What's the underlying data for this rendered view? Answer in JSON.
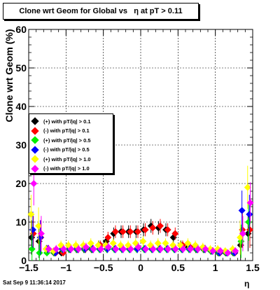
{
  "title": "Clone wrt Geom for Global vs   η at pT > 0.11",
  "timestamp": "Sat Sep  9 11:36:14 2017",
  "chart_data": {
    "type": "scatter",
    "title": "Clone wrt Geom for Global vs   η at pT > 0.11",
    "xlabel": "η",
    "ylabel": "Clone wrt Geom (%)",
    "xlim": [
      -1.5,
      1.5
    ],
    "ylim": [
      0,
      60
    ],
    "x_ticks": [
      "−1.5",
      "−1",
      "−0.5",
      "0",
      "0.5",
      "1",
      "1.5"
    ],
    "y_ticks": [
      "0",
      "10",
      "20",
      "30",
      "40",
      "50",
      "60"
    ],
    "grid": true,
    "legend_position": "left-middle",
    "series": [
      {
        "name": "(+) with pT/|q| > 0.1",
        "color": "#000000",
        "x": [
          -1.45,
          -1.35,
          -1.25,
          -1.15,
          -1.05,
          -0.95,
          -0.85,
          -0.75,
          -0.65,
          -0.55,
          -0.45,
          -0.35,
          -0.25,
          -0.15,
          -0.05,
          0.05,
          0.15,
          0.25,
          0.35,
          0.45,
          0.55,
          0.65,
          0.75,
          0.85,
          0.95,
          1.05,
          1.15,
          1.25,
          1.35,
          1.45
        ],
        "y": [
          6,
          5,
          3,
          2,
          2,
          3,
          3,
          3,
          3,
          4,
          5,
          7,
          7.5,
          7.5,
          7.5,
          8,
          9,
          8.5,
          8,
          6,
          4,
          3.5,
          3,
          3,
          2.5,
          2,
          2,
          2,
          4,
          7
        ]
      },
      {
        "name": "(-) with pT/|q| > 0.1",
        "color": "#ff0000",
        "x": [
          -1.45,
          -1.35,
          -1.25,
          -1.15,
          -1.05,
          -0.95,
          -0.85,
          -0.75,
          -0.65,
          -0.55,
          -0.45,
          -0.35,
          -0.25,
          -0.15,
          -0.05,
          0.05,
          0.15,
          0.25,
          0.35,
          0.45,
          0.55,
          0.65,
          0.75,
          0.85,
          0.95,
          1.05,
          1.15,
          1.25,
          1.35,
          1.45
        ],
        "y": [
          7,
          6,
          3,
          2,
          2,
          3,
          3,
          3,
          3,
          4,
          6,
          7.5,
          7.5,
          7.5,
          7.5,
          8,
          8.5,
          9,
          8,
          7,
          4,
          3.5,
          3,
          3,
          2.5,
          2,
          2,
          2,
          8,
          8
        ]
      },
      {
        "name": "(+) with pT/|q| > 0.5",
        "color": "#00ee00",
        "x": [
          -1.45,
          -1.35,
          -1.25,
          -1.15,
          -1.05,
          -0.95,
          -0.85,
          -0.75,
          -0.65,
          -0.55,
          -0.45,
          -0.35,
          -0.25,
          -0.15,
          -0.05,
          0.05,
          0.15,
          0.25,
          0.35,
          0.45,
          0.55,
          0.65,
          0.75,
          0.85,
          0.95,
          1.05,
          1.15,
          1.25,
          1.35,
          1.45
        ],
        "y": [
          3,
          2,
          2,
          2,
          3,
          3,
          3,
          3,
          3,
          3,
          3,
          3,
          3,
          3,
          3,
          3,
          3,
          3,
          3,
          3,
          3,
          3,
          3,
          3,
          2.5,
          2,
          2,
          2,
          5,
          10
        ]
      },
      {
        "name": "(-) with pT/|q| > 0.5",
        "color": "#0000ff",
        "x": [
          -1.45,
          -1.35,
          -1.25,
          -1.15,
          -1.05,
          -0.95,
          -0.85,
          -0.75,
          -0.65,
          -0.55,
          -0.45,
          -0.35,
          -0.25,
          -0.15,
          -0.05,
          0.05,
          0.15,
          0.25,
          0.35,
          0.45,
          0.55,
          0.65,
          0.75,
          0.85,
          0.95,
          1.05,
          1.15,
          1.25,
          1.35,
          1.45
        ],
        "y": [
          8,
          6,
          3,
          2,
          3,
          3,
          3,
          3,
          3,
          3,
          3,
          3,
          3,
          3,
          3,
          3,
          3,
          3,
          3,
          3,
          3,
          3,
          3,
          3,
          2.5,
          2,
          2,
          2,
          13,
          12
        ]
      },
      {
        "name": "(+) with pT/|q| > 1.0",
        "color": "#ffff00",
        "x": [
          -1.45,
          -1.35,
          -1.25,
          -1.15,
          -1.05,
          -0.95,
          -0.85,
          -0.75,
          -0.65,
          -0.55,
          -0.45,
          -0.35,
          -0.25,
          -0.15,
          -0.05,
          0.05,
          0.15,
          0.25,
          0.35,
          0.45,
          0.55,
          0.65,
          0.75,
          0.85,
          0.95,
          1.05,
          1.15,
          1.25,
          1.35,
          1.45
        ],
        "y": [
          12,
          9,
          3,
          2.5,
          4,
          4,
          4,
          4,
          4.5,
          4,
          4,
          4.5,
          4,
          4,
          4.5,
          5,
          4,
          4.5,
          4.5,
          4,
          4,
          4.5,
          4,
          3.5,
          3,
          3,
          2.5,
          3,
          6,
          19
        ]
      },
      {
        "name": "(-) with pT/|q| > 1.0",
        "color": "#ff00ff",
        "x": [
          -1.45,
          -1.35,
          -1.25,
          -1.15,
          -1.05,
          -0.95,
          -0.85,
          -0.75,
          -0.65,
          -0.55,
          -0.45,
          -0.35,
          -0.25,
          -0.15,
          -0.05,
          0.05,
          0.15,
          0.25,
          0.35,
          0.45,
          0.55,
          0.65,
          0.75,
          0.85,
          0.95,
          1.05,
          1.15,
          1.25,
          1.35,
          1.45
        ],
        "y": [
          20,
          7,
          3,
          3,
          3,
          3,
          3,
          3.5,
          3,
          3,
          3.5,
          3,
          3,
          3,
          3.5,
          3,
          3,
          3,
          3,
          3,
          3,
          3,
          3,
          3,
          2.5,
          2.5,
          2,
          2.5,
          7,
          15
        ]
      }
    ]
  }
}
